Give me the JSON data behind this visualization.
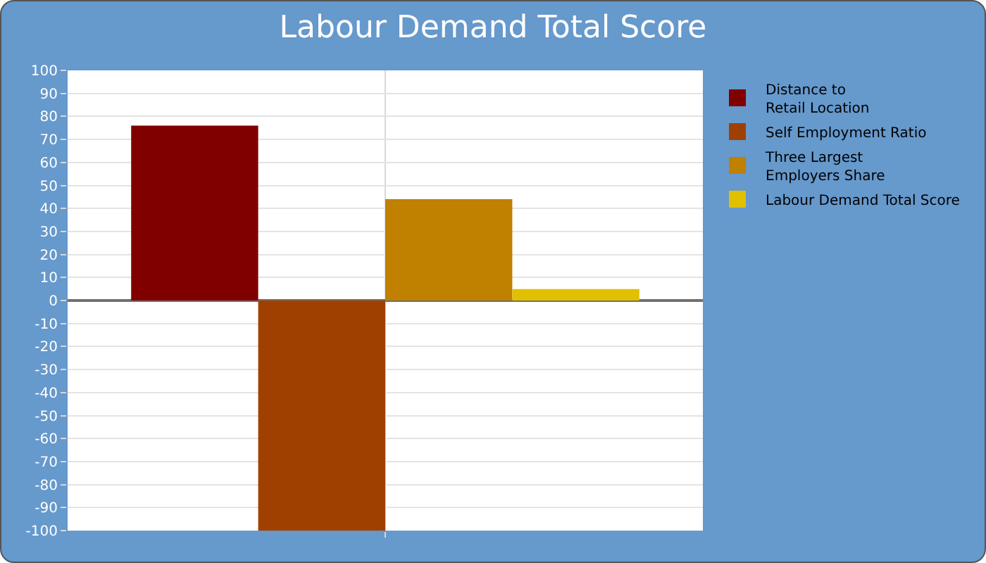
{
  "chart_data": {
    "type": "bar",
    "title": "Labour Demand Total Score",
    "categories": [
      null
    ],
    "series": [
      {
        "name": "Distance to\nRetail Location",
        "color": "#800000",
        "values": [
          76
        ]
      },
      {
        "name": "Self Employment Ratio",
        "color": "#a04000",
        "values": [
          -100
        ]
      },
      {
        "name": "Three Largest\nEmployers Share",
        "color": "#c08000",
        "values": [
          44
        ]
      },
      {
        "name": "Labour Demand Total Score",
        "color": "#e0c000",
        "values": [
          5
        ]
      }
    ],
    "ylim": [
      -100,
      100
    ],
    "yticks": [
      -100,
      -90,
      -80,
      -70,
      -60,
      -50,
      -40,
      -30,
      -20,
      -10,
      0,
      10,
      20,
      30,
      40,
      50,
      60,
      70,
      80,
      90,
      100
    ],
    "grid": true,
    "legend": "top right"
  }
}
